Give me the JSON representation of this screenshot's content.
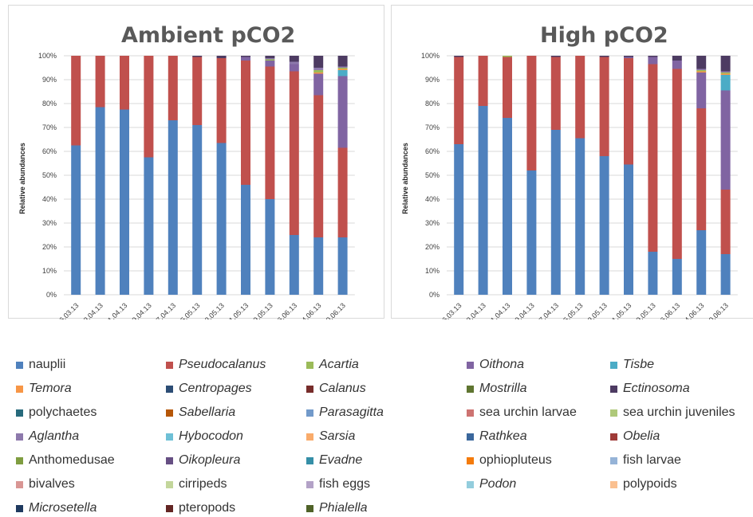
{
  "chart_data": [
    {
      "type": "bar",
      "stacked": true,
      "title": "Ambient pCO2",
      "ylabel": "Relative abundances",
      "ylim": [
        0,
        100
      ],
      "yticks": [
        "0%",
        "10%",
        "20%",
        "30%",
        "40%",
        "50%",
        "60%",
        "70%",
        "80%",
        "90%",
        "100%"
      ],
      "categories": [
        "26.03.13",
        "03.04.13",
        "11.04.13",
        "19.04.13",
        "27.04.13",
        "05.05.13",
        "13.05.13",
        "21.05.13",
        "29.05.13",
        "06.06.13",
        "14.06.13",
        "20.06.13"
      ],
      "series": [
        {
          "name": "nauplii",
          "values": [
            62.5,
            78.5,
            77.5,
            57.5,
            73,
            71,
            63.5,
            46,
            40,
            25,
            24,
            24
          ]
        },
        {
          "name": "Pseudocalanus",
          "values": [
            37.5,
            21.5,
            22.5,
            42.5,
            27,
            28.5,
            35.5,
            52,
            55.5,
            68.5,
            59.5,
            37.5
          ]
        },
        {
          "name": "Oithona",
          "values": [
            0,
            0,
            0,
            0,
            0,
            0,
            0,
            1.5,
            2.5,
            3,
            9,
            30
          ]
        },
        {
          "name": "Tisbe",
          "values": [
            0,
            0,
            0,
            0,
            0,
            0,
            0,
            0,
            0,
            0,
            0,
            2.5
          ]
        },
        {
          "name": "Temora",
          "values": [
            0,
            0,
            0,
            0,
            0,
            0,
            0,
            0,
            0,
            0,
            0.5,
            0.5
          ]
        },
        {
          "name": "Acartia",
          "values": [
            0,
            0,
            0,
            0,
            0,
            0,
            0,
            0,
            0.5,
            0,
            1,
            0.5
          ]
        },
        {
          "name": "Aglantha",
          "values": [
            0,
            0,
            0,
            0,
            0,
            0,
            0,
            0,
            0.5,
            1,
            1,
            0.5
          ]
        },
        {
          "name": "Ectinosoma",
          "values": [
            0,
            0,
            0,
            0,
            0,
            0.5,
            1,
            0.5,
            1,
            2.5,
            5,
            4.5
          ]
        }
      ]
    },
    {
      "type": "bar",
      "stacked": true,
      "title": "High pCO2",
      "ylabel": "Relative abundances",
      "ylim": [
        0,
        100
      ],
      "yticks": [
        "0%",
        "10%",
        "20%",
        "30%",
        "40%",
        "50%",
        "60%",
        "70%",
        "80%",
        "90%",
        "100%"
      ],
      "categories": [
        "26.03.13",
        "03.04.13",
        "11.04.13",
        "19.04.13",
        "27.04.13",
        "05.05.13",
        "13.05.13",
        "21.05.13",
        "29.05.13",
        "06.06.13",
        "14.06.13",
        "20.06.13"
      ],
      "series": [
        {
          "name": "nauplii",
          "values": [
            63,
            79,
            74,
            52,
            69,
            65.5,
            58,
            54.5,
            18,
            15,
            27,
            17
          ]
        },
        {
          "name": "Pseudocalanus",
          "values": [
            36.5,
            21,
            25.5,
            48,
            30.5,
            34.5,
            41.5,
            44.5,
            78.5,
            79.5,
            51,
            27
          ]
        },
        {
          "name": "Oithona",
          "values": [
            0,
            0,
            0,
            0,
            0,
            0,
            0,
            0.5,
            3,
            3.5,
            15,
            41.5
          ]
        },
        {
          "name": "Tisbe",
          "values": [
            0,
            0,
            0,
            0,
            0,
            0,
            0,
            0,
            0,
            0,
            0,
            6.5
          ]
        },
        {
          "name": "Temora",
          "values": [
            0,
            0,
            0,
            0,
            0,
            0,
            0,
            0,
            0,
            0,
            0.5,
            0.5
          ]
        },
        {
          "name": "Acartia",
          "values": [
            0,
            0,
            0.5,
            0,
            0,
            0,
            0,
            0,
            0,
            0,
            0.5,
            0.5
          ]
        },
        {
          "name": "Aglantha",
          "values": [
            0,
            0,
            0,
            0,
            0,
            0,
            0,
            0,
            0,
            0,
            0.5,
            0.5
          ]
        },
        {
          "name": "Ectinosoma",
          "values": [
            0.5,
            0,
            0,
            0,
            0.5,
            0,
            0.5,
            0.5,
            0.5,
            2,
            5.5,
            6.5
          ]
        }
      ]
    }
  ],
  "legend": [
    {
      "name": "nauplii",
      "color": "#4f81bd",
      "italic": false
    },
    {
      "name": "Pseudocalanus",
      "color": "#c0504d",
      "italic": true
    },
    {
      "name": "Acartia",
      "color": "#9bbb59",
      "italic": true
    },
    {
      "name": "Oithona",
      "color": "#8064a2",
      "italic": true
    },
    {
      "name": "Tisbe",
      "color": "#4bacc6",
      "italic": true
    },
    {
      "name": "Temora",
      "color": "#f79646",
      "italic": true
    },
    {
      "name": "Centropages",
      "color": "#2c4d75",
      "italic": true
    },
    {
      "name": "Calanus",
      "color": "#772c2a",
      "italic": true
    },
    {
      "name": "Mostrilla",
      "color": "#5f7530",
      "italic": true
    },
    {
      "name": "Ectinosoma",
      "color": "#4d3b62",
      "italic": true
    },
    {
      "name": "polychaetes",
      "color": "#276a7c",
      "italic": false
    },
    {
      "name": "Sabellaria",
      "color": "#b65708",
      "italic": true
    },
    {
      "name": "Parasagitta",
      "color": "#729aca",
      "italic": true
    },
    {
      "name": "sea urchin larvae",
      "color": "#cd7371",
      "italic": false
    },
    {
      "name": "sea urchin juveniles",
      "color": "#afc97a",
      "italic": false
    },
    {
      "name": "Aglantha",
      "color": "#8d79ac",
      "italic": true
    },
    {
      "name": "Hybocodon",
      "color": "#6ec0d6",
      "italic": true
    },
    {
      "name": "Sarsia",
      "color": "#f9ab6b",
      "italic": true
    },
    {
      "name": "Rathkea",
      "color": "#3a679c",
      "italic": true
    },
    {
      "name": "Obelia",
      "color": "#9f3b38",
      "italic": true
    },
    {
      "name": "Anthomedusae",
      "color": "#7f9d40",
      "italic": false
    },
    {
      "name": "Oikopleura",
      "color": "#664f83",
      "italic": true
    },
    {
      "name": "Evadne",
      "color": "#358fa7",
      "italic": true
    },
    {
      "name": "ophiopluteus",
      "color": "#f47b0b",
      "italic": false
    },
    {
      "name": "fish larvae",
      "color": "#95b3d7",
      "italic": false
    },
    {
      "name": "bivalves",
      "color": "#d99694",
      "italic": false
    },
    {
      "name": "cirripeds",
      "color": "#c3d69b",
      "italic": false
    },
    {
      "name": "fish eggs",
      "color": "#b3a2c7",
      "italic": false
    },
    {
      "name": "Podon",
      "color": "#93cddd",
      "italic": true
    },
    {
      "name": "polypoids",
      "color": "#fac090",
      "italic": false
    },
    {
      "name": "Microsetella",
      "color": "#1f3a5f",
      "italic": true
    },
    {
      "name": "pteropods",
      "color": "#632523",
      "italic": false
    },
    {
      "name": "Phialella",
      "color": "#4f6228",
      "italic": true
    }
  ]
}
